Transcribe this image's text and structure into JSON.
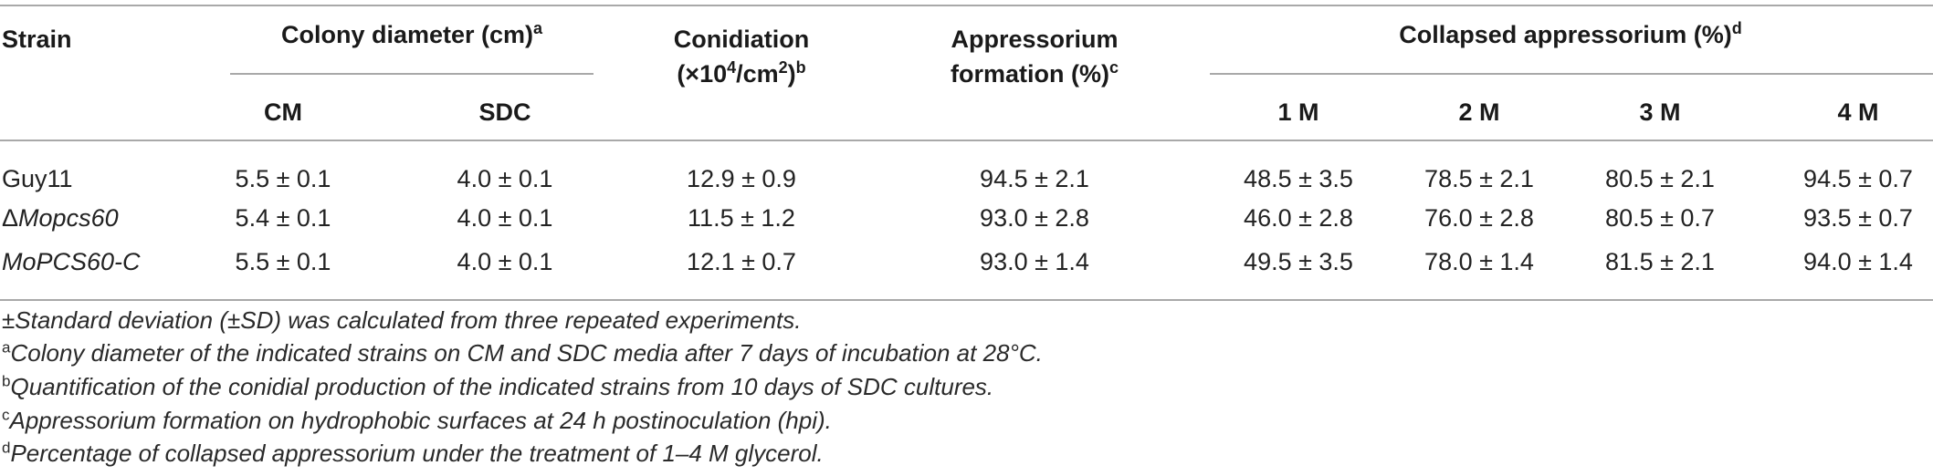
{
  "headers": {
    "strain": "Strain",
    "colony_diameter": "Colony diameter (cm)",
    "colony_diameter_sup": "a",
    "cm": "CM",
    "sdc": "SDC",
    "conidiation_line1": "Conidiation",
    "conidiation_line2_pre": "(×10",
    "conidiation_line2_exp": "4",
    "conidiation_line2_mid": "/cm",
    "conidiation_line2_exp2": "2",
    "conidiation_line2_post": ")",
    "conidiation_sup": "b",
    "appressorium_line1": "Appressorium",
    "appressorium_line2": "formation (%)",
    "appressorium_sup": "c",
    "collapsed": "Collapsed appressorium (%)",
    "collapsed_sup": "d",
    "m1": "1 M",
    "m2": "2 M",
    "m3": "3 M",
    "m4": "4 M"
  },
  "rows": [
    {
      "strain": "Guy11",
      "cm": "5.5 ± 0.1",
      "sdc": "4.0 ± 0.1",
      "conidiation": "12.9 ± 0.9",
      "formation": "94.5 ± 2.1",
      "m1": "48.5 ± 3.5",
      "m2": "78.5 ± 2.1",
      "m3": "80.5 ± 2.1",
      "m4": "94.5 ± 0.7"
    },
    {
      "strain_prefix": "Δ",
      "strain": "Mopcs60",
      "cm": "5.4 ± 0.1",
      "sdc": "4.0 ± 0.1",
      "conidiation": "11.5 ± 1.2",
      "formation": "93.0 ± 2.8",
      "m1": "46.0 ± 2.8",
      "m2": "76.0 ± 2.8",
      "m3": "80.5 ± 0.7",
      "m4": "93.5 ± 0.7"
    },
    {
      "strain": "MoPCS60-C",
      "cm": "5.5 ± 0.1",
      "sdc": "4.0 ± 0.1",
      "conidiation": "12.1 ± 0.7",
      "formation": "93.0 ± 1.4",
      "m1": "49.5 ± 3.5",
      "m2": "78.0 ± 1.4",
      "m3": "81.5 ± 2.1",
      "m4": "94.0 ± 1.4"
    }
  ],
  "footnotes": {
    "sd": "±Standard deviation (±SD) was calculated from three repeated experiments.",
    "a_mark": "a",
    "a": "Colony diameter of the indicated strains on CM and SDC media after 7 days of incubation at 28°C.",
    "b_mark": "b",
    "b": "Quantification of the conidial production of the indicated strains from 10 days of SDC cultures.",
    "c_mark": "c",
    "c": "Appressorium formation on hydrophobic surfaces at 24 h postinoculation (hpi).",
    "d_mark": "d",
    "d": "Percentage of collapsed appressorium under the treatment of 1–4 M glycerol."
  }
}
